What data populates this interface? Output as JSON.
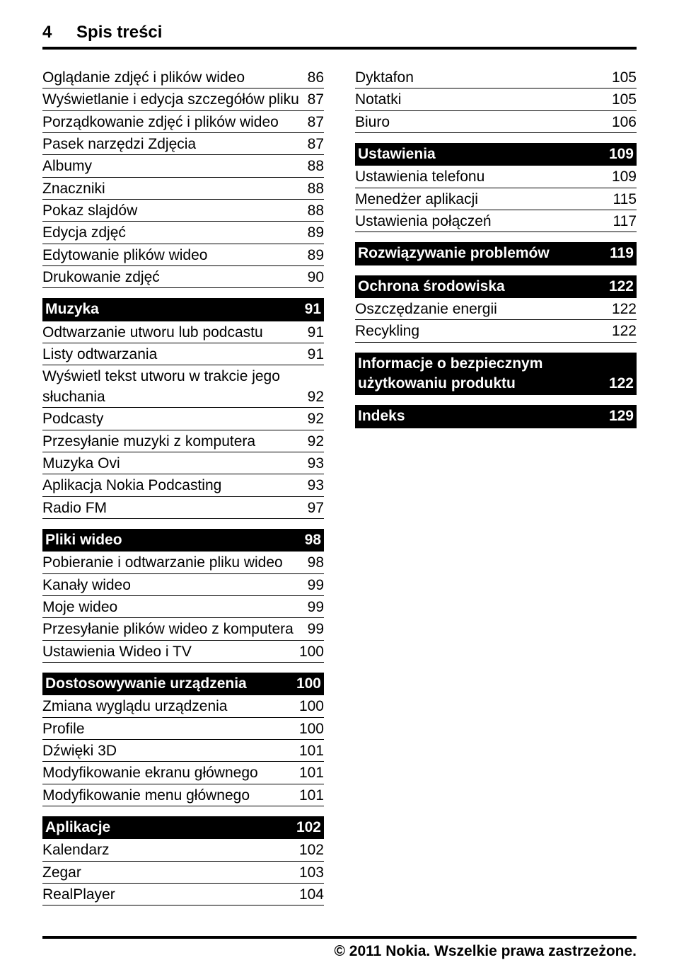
{
  "header": {
    "page_number": "4",
    "title": "Spis treści"
  },
  "footer": "© 2011 Nokia. Wszelkie prawa zastrzeżone.",
  "left": [
    {
      "label": "Oglądanie zdjęć i plików wideo",
      "page": "86"
    },
    {
      "label": "Wyświetlanie i edycja szczegółów pliku",
      "page": "87"
    },
    {
      "label": "Porządkowanie zdjęć i plików wideo",
      "page": "87"
    },
    {
      "label": "Pasek narzędzi Zdjęcia",
      "page": "87"
    },
    {
      "label": "Albumy",
      "page": "88"
    },
    {
      "label": "Znaczniki",
      "page": "88"
    },
    {
      "label": "Pokaz slajdów",
      "page": "88"
    },
    {
      "label": "Edycja zdjęć",
      "page": "89"
    },
    {
      "label": "Edytowanie plików wideo",
      "page": "89"
    },
    {
      "label": "Drukowanie zdjęć",
      "page": "90"
    },
    {
      "section": true,
      "label": "Muzyka",
      "page": "91"
    },
    {
      "label": "Odtwarzanie utworu lub podcastu",
      "page": "91"
    },
    {
      "label": "Listy odtwarzania",
      "page": "91"
    },
    {
      "label": "Wyświetl tekst utworu w trakcie jego słuchania",
      "page": "92"
    },
    {
      "label": "Podcasty",
      "page": "92"
    },
    {
      "label": "Przesyłanie muzyki z komputera",
      "page": "92"
    },
    {
      "label": "Muzyka Ovi",
      "page": "93"
    },
    {
      "label": "Aplikacja Nokia Podcasting",
      "page": "93"
    },
    {
      "label": "Radio FM",
      "page": "97"
    },
    {
      "section": true,
      "label": "Pliki wideo",
      "page": "98"
    },
    {
      "label": "Pobieranie i odtwarzanie pliku wideo",
      "page": "98"
    },
    {
      "label": "Kanały wideo",
      "page": "99"
    },
    {
      "label": "Moje wideo",
      "page": "99"
    },
    {
      "label": "Przesyłanie plików wideo z komputera",
      "page": "99"
    },
    {
      "label": "Ustawienia Wideo i TV",
      "page": "100"
    },
    {
      "section": true,
      "label": "Dostosowywanie urządzenia",
      "page": "100"
    },
    {
      "label": "Zmiana wyglądu urządzenia",
      "page": "100"
    },
    {
      "label": "Profile",
      "page": "100"
    },
    {
      "label": "Dźwięki 3D",
      "page": "101"
    },
    {
      "label": "Modyfikowanie ekranu głównego",
      "page": "101"
    },
    {
      "label": "Modyfikowanie menu głównego",
      "page": "101"
    },
    {
      "section": true,
      "label": "Aplikacje",
      "page": "102"
    },
    {
      "label": "Kalendarz",
      "page": "102"
    },
    {
      "label": "Zegar",
      "page": "103"
    },
    {
      "label": "RealPlayer",
      "page": "104"
    }
  ],
  "right": [
    {
      "label": "Dyktafon",
      "page": "105"
    },
    {
      "label": "Notatki",
      "page": "105"
    },
    {
      "label": "Biuro",
      "page": "106"
    },
    {
      "section": true,
      "label": "Ustawienia",
      "page": "109"
    },
    {
      "label": "Ustawienia telefonu",
      "page": "109"
    },
    {
      "label": "Menedżer aplikacji",
      "page": "115"
    },
    {
      "label": "Ustawienia połączeń",
      "page": "117"
    },
    {
      "section": true,
      "label": "Rozwiązywanie problemów",
      "page": "119"
    },
    {
      "section": true,
      "label": "Ochrona środowiska",
      "page": "122"
    },
    {
      "label": "Oszczędzanie energii",
      "page": "122"
    },
    {
      "label": "Recykling",
      "page": "122"
    },
    {
      "section": true,
      "label": "Informacje o bezpiecznym użytkowaniu produktu",
      "page": "122"
    },
    {
      "section": true,
      "label": "Indeks",
      "page": "129"
    }
  ]
}
